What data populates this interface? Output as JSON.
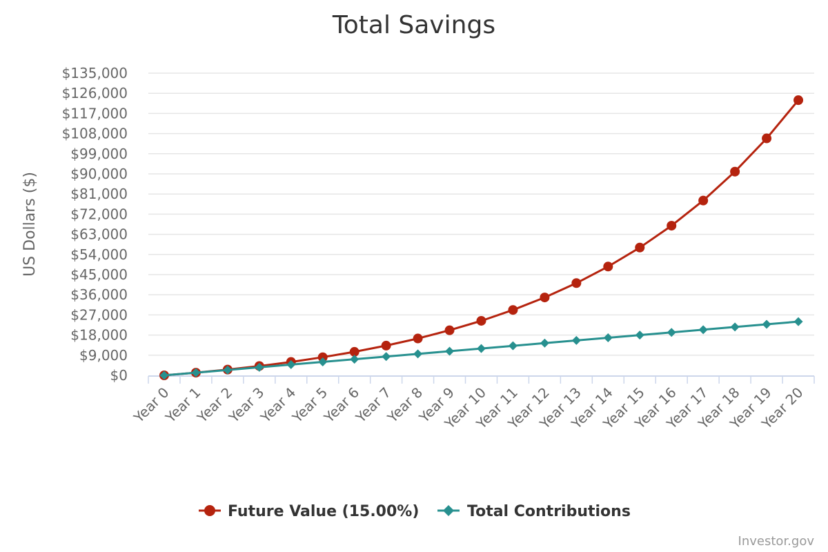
{
  "chart_data": {
    "type": "line",
    "title": "Total Savings",
    "ylabel": "US Dollars ($)",
    "xlabel": "",
    "categories": [
      "Year 0",
      "Year 1",
      "Year 2",
      "Year 3",
      "Year 4",
      "Year 5",
      "Year 6",
      "Year 7",
      "Year 8",
      "Year 9",
      "Year 10",
      "Year 11",
      "Year 12",
      "Year 13",
      "Year 14",
      "Year 15",
      "Year 16",
      "Year 17",
      "Year 18",
      "Year 19",
      "Year 20"
    ],
    "ylim": [
      0,
      135000
    ],
    "yticks": [
      0,
      9000,
      18000,
      27000,
      36000,
      45000,
      54000,
      63000,
      72000,
      81000,
      90000,
      99000,
      108000,
      117000,
      126000,
      135000
    ],
    "ytick_labels": [
      "$0",
      "$9,000",
      "$18,000",
      "$27,000",
      "$36,000",
      "$45,000",
      "$54,000",
      "$63,000",
      "$72,000",
      "$81,000",
      "$90,000",
      "$99,000",
      "$108,000",
      "$117,000",
      "$126,000",
      "$135,000"
    ],
    "grid": true,
    "legend": "bottom-center",
    "series": [
      {
        "name": "Future Value (15.00%)",
        "marker": "circle",
        "color": "#b5230e",
        "values": [
          0,
          1200,
          2580,
          4167,
          5992,
          8091,
          10504,
          13280,
          16472,
          20143,
          24364,
          29219,
          34802,
          41222,
          48605,
          57096,
          66861,
          78090,
          91004,
          105855,
          122933
        ]
      },
      {
        "name": "Total Contributions",
        "marker": "diamond",
        "color": "#27908f",
        "values": [
          0,
          1200,
          2400,
          3600,
          4800,
          6000,
          7200,
          8400,
          9600,
          10800,
          12000,
          13200,
          14400,
          15600,
          16800,
          18000,
          19200,
          20400,
          21600,
          22800,
          24000
        ]
      }
    ]
  },
  "credits": "Investor.gov"
}
